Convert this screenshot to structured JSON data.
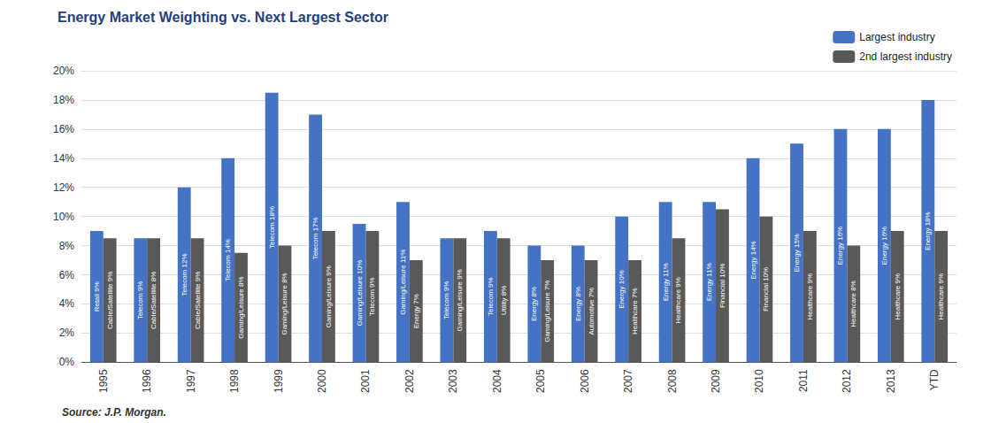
{
  "chart_data": {
    "type": "bar",
    "title": "Energy Market Weighting vs. Next Largest Sector",
    "annotations": [
      "Source: J.P. Morgan."
    ],
    "categories": [
      "1995",
      "1996",
      "1997",
      "1998",
      "1999",
      "2000",
      "2001",
      "2002",
      "2003",
      "2004",
      "2005",
      "2006",
      "2007",
      "2008",
      "2009",
      "2010",
      "2011",
      "2012",
      "2013",
      "YTD"
    ],
    "series": [
      {
        "name": "Largest industry",
        "color": "#4472C4",
        "values": [
          9,
          8.5,
          12,
          14,
          18.5,
          17,
          9.5,
          11,
          8.5,
          9,
          8,
          8,
          10,
          11,
          11,
          14,
          15,
          16,
          16,
          18
        ],
        "value_labels": [
          "Retail 9%",
          "Telecom 9%",
          "Telecom 12%",
          "Telecom 14%",
          "Telecom 18%",
          "Telecom 17%",
          "Gaming/Leisure 10%",
          "Gaming/Leisure 11%",
          "Telecom 9%",
          "Telecom 9%",
          "Energy 8%",
          "Energy 8%",
          "Energy 10%",
          "Energy 11%",
          "Energy 11%",
          "Energy 14%",
          "Energy 15%",
          "Energy 16%",
          "Energy 16%",
          "Energy 18%"
        ]
      },
      {
        "name": "2nd largest industry",
        "color": "#595959",
        "values": [
          8.5,
          8.5,
          8.5,
          7.5,
          8,
          9,
          9,
          7,
          8.5,
          8.5,
          7,
          7,
          7,
          8.5,
          10.5,
          10,
          9,
          8,
          9,
          9
        ],
        "value_labels": [
          "Cable/Satellite 9%",
          "Cable/Satellite 8%",
          "Cable/Satellite 9%",
          "Gaming/Leisure 8%",
          "Gaming/Leisure 8%",
          "Gaming/Leisure 9%",
          "Telecom 9%",
          "Energy 7%",
          "Gaming/Leisure 9%",
          "Utility 8%",
          "Gaming/Leisure 7%",
          "Automotive 7%",
          "Healthcare 7%",
          "Healthcare 9%",
          "Financial 10%",
          "Financial 10%",
          "Healthcare 9%",
          "Healthcare 8%",
          "Healthcare 9%",
          "Healthcare 9%"
        ]
      }
    ],
    "ylim": [
      0,
      20
    ],
    "yticks": [
      {
        "value": 0,
        "label": "0%"
      },
      {
        "value": 2,
        "label": "2%"
      },
      {
        "value": 4,
        "label": "4%"
      },
      {
        "value": 6,
        "label": "6%"
      },
      {
        "value": 8,
        "label": "8%"
      },
      {
        "value": 10,
        "label": "10%"
      },
      {
        "value": 12,
        "label": "12%"
      },
      {
        "value": 14,
        "label": "14%"
      },
      {
        "value": 16,
        "label": "16%"
      },
      {
        "value": 18,
        "label": "18%"
      },
      {
        "value": 20,
        "label": "20%"
      }
    ],
    "grid": true,
    "legend": "upper right",
    "data_labels": true
  }
}
